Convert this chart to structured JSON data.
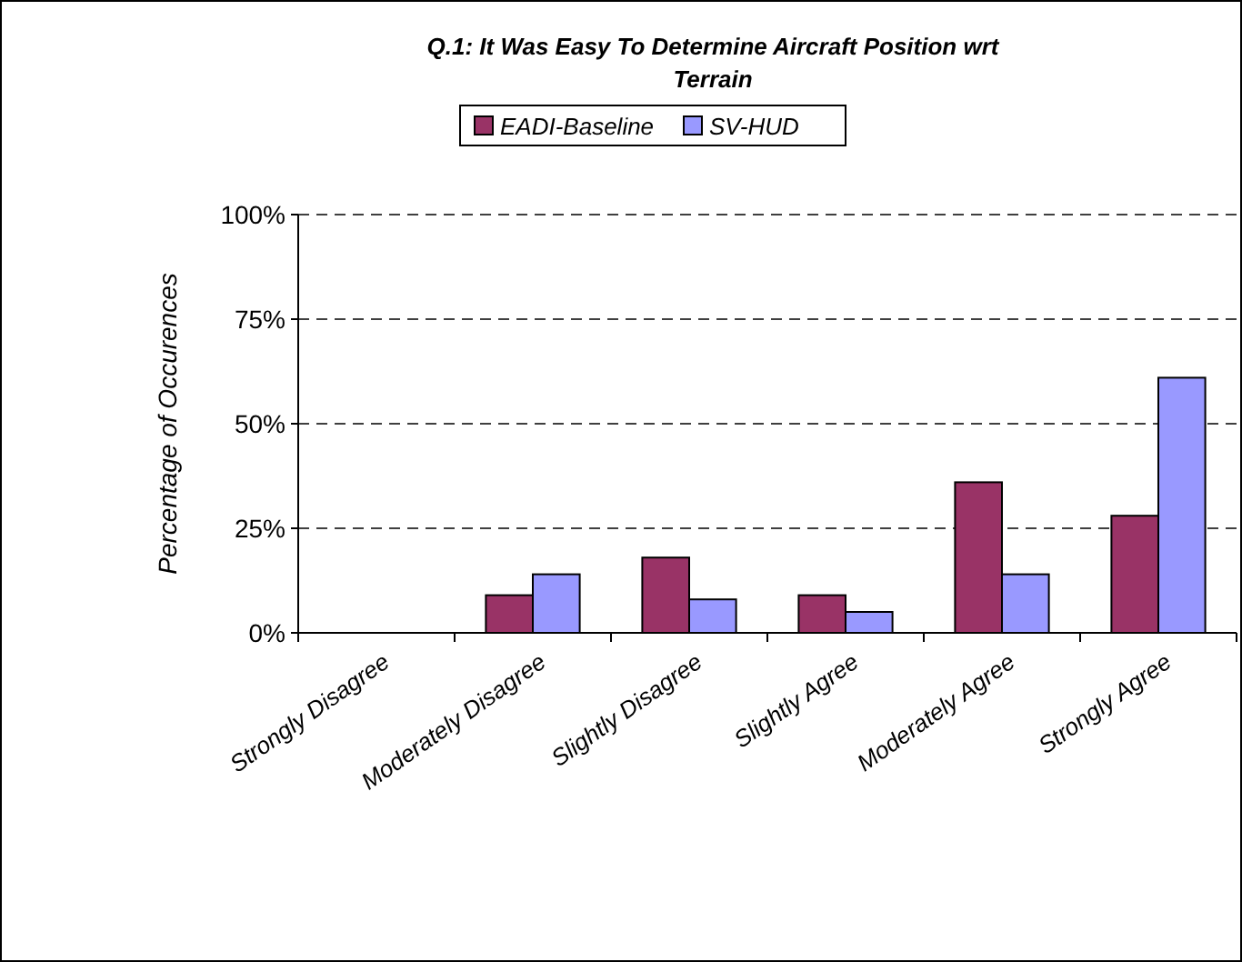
{
  "chart_data": {
    "type": "bar",
    "title": "Q.1: It Was Easy To Determine Aircraft Position wrt Terrain",
    "ylabel": "Percentage of Occurences",
    "categories": [
      "Strongly Disagree",
      "Moderately Disagree",
      "Slightly Disagree",
      "Slightly Agree",
      "Moderately Agree",
      "Strongly Agree"
    ],
    "series": [
      {
        "name": "EADI-Baseline",
        "color": "#993366",
        "values": [
          0,
          9,
          18,
          9,
          36,
          28
        ]
      },
      {
        "name": "SV-HUD",
        "color": "#9999ff",
        "values": [
          0,
          14,
          8,
          5,
          14,
          61
        ]
      }
    ],
    "ylim": [
      0,
      100
    ],
    "yticks": [
      {
        "value": 0,
        "label": "0%"
      },
      {
        "value": 25,
        "label": "25%"
      },
      {
        "value": 50,
        "label": "50%"
      },
      {
        "value": 75,
        "label": "75%"
      },
      {
        "value": 100,
        "label": "100%"
      }
    ],
    "grid": "y",
    "legend": "top",
    "line_style": "dashed"
  }
}
